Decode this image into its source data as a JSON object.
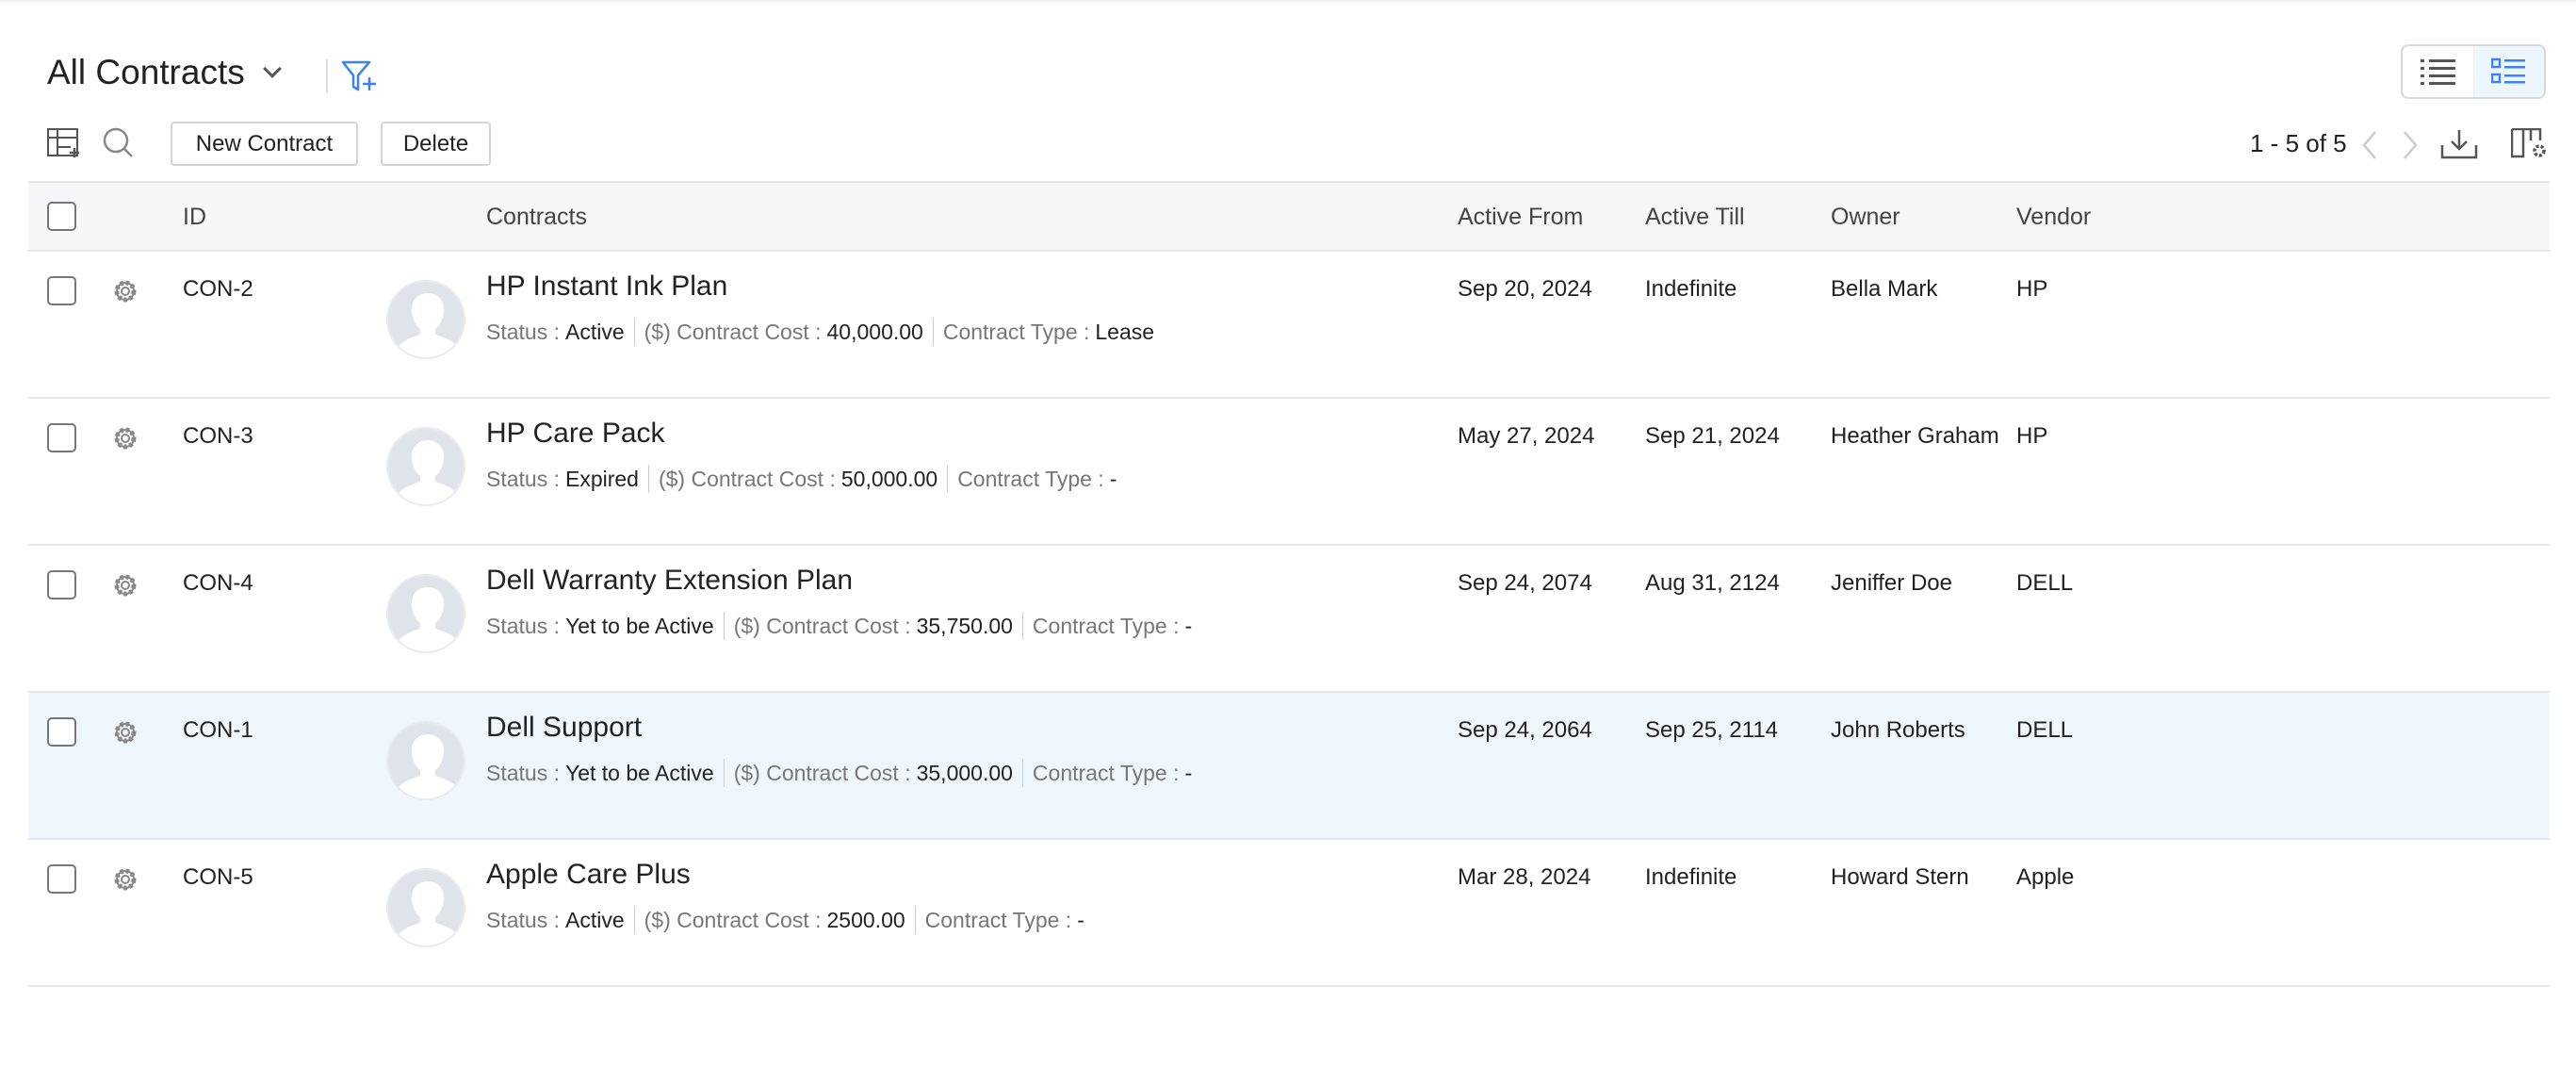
{
  "header": {
    "title": "All Contracts"
  },
  "toolbar": {
    "new_label": "New Contract",
    "delete_label": "Delete",
    "pagination": "1 - 5 of 5"
  },
  "colors": {
    "accent": "#3b82f6",
    "highlight_row": "#eff7fd",
    "header_bg": "#f6f7f9"
  },
  "table": {
    "columns": {
      "id": "ID",
      "contracts": "Contracts",
      "active_from": "Active From",
      "active_till": "Active Till",
      "owner": "Owner",
      "vendor": "Vendor"
    },
    "labels": {
      "status": "Status :",
      "cost": "($) Contract Cost :",
      "type": "Contract Type :"
    },
    "rows": [
      {
        "id": "CON-2",
        "name": "HP Instant Ink Plan",
        "status": "Active",
        "cost": "40,000.00",
        "type": "Lease",
        "active_from": "Sep 20, 2024",
        "active_till": "Indefinite",
        "owner": "Bella Mark",
        "vendor": "HP"
      },
      {
        "id": "CON-3",
        "name": "HP Care Pack",
        "status": "Expired",
        "cost": "50,000.00",
        "type": "-",
        "active_from": "May 27, 2024",
        "active_till": "Sep 21, 2024",
        "owner": "Heather Graham",
        "vendor": "HP"
      },
      {
        "id": "CON-4",
        "name": "Dell Warranty Extension Plan",
        "status": "Yet to be Active",
        "cost": "35,750.00",
        "type": "-",
        "active_from": "Sep 24, 2074",
        "active_till": "Aug 31, 2124",
        "owner": "Jeniffer Doe",
        "vendor": "DELL"
      },
      {
        "id": "CON-1",
        "name": "Dell Support",
        "status": "Yet to be Active",
        "cost": "35,000.00",
        "type": "-",
        "active_from": "Sep 24, 2064",
        "active_till": "Sep 25, 2114",
        "owner": "John Roberts",
        "vendor": "DELL",
        "highlighted": true
      },
      {
        "id": "CON-5",
        "name": "Apple Care Plus",
        "status": "Active",
        "cost": "2500.00",
        "type": "-",
        "active_from": "Mar 28, 2024",
        "active_till": "Indefinite",
        "owner": "Howard Stern",
        "vendor": "Apple"
      }
    ]
  }
}
